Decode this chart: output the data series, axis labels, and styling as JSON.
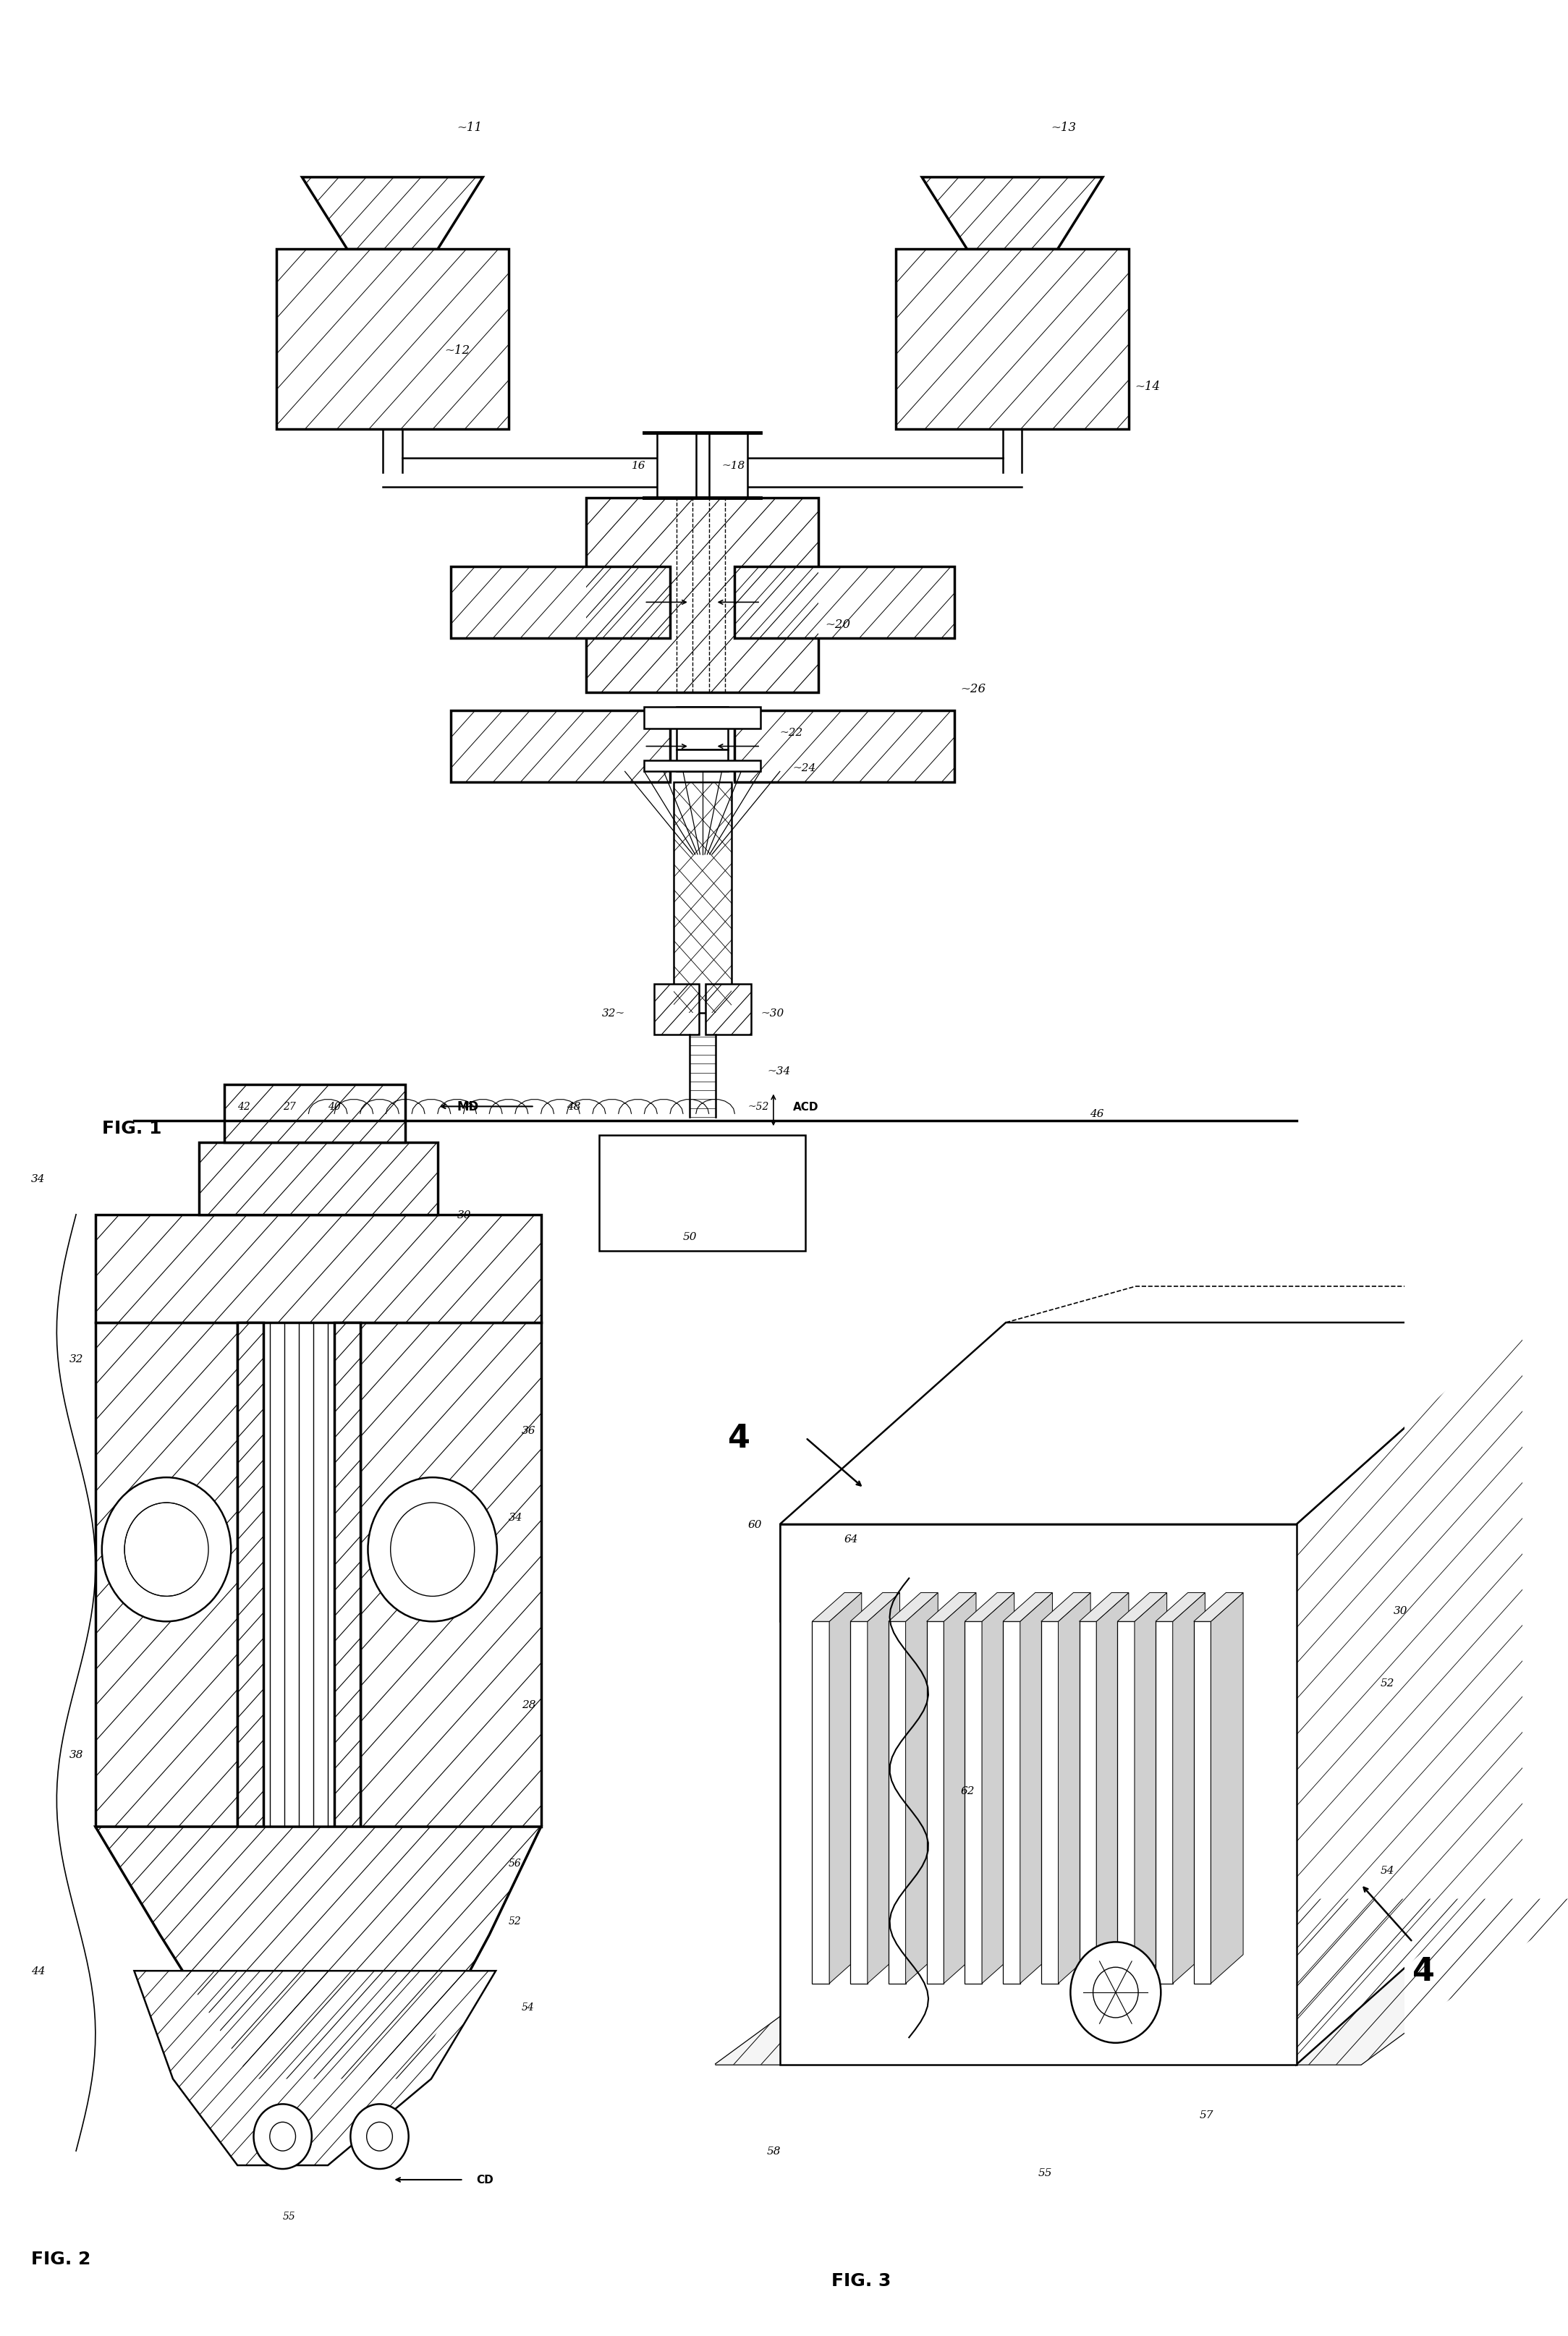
{
  "bg_color": "#ffffff",
  "fig_width": 21.67,
  "fig_height": 32.3,
  "labels": {
    "fig1": "FIG. 1",
    "fig2": "FIG. 2",
    "fig3": "FIG. 3",
    "n11": "11",
    "n12": "12",
    "n13": "13",
    "n14": "14",
    "n16": "16",
    "n18": "18",
    "n20": "20",
    "n22": "22",
    "n24": "24",
    "n26": "26",
    "n28": "28",
    "n30": "30",
    "n32": "32",
    "n34": "34",
    "n36": "36",
    "n38": "38",
    "n40": "40",
    "n42": "42",
    "n44": "44",
    "n46": "46",
    "n48": "48",
    "n50": "50",
    "n52": "52",
    "n54": "54",
    "n55": "55",
    "n56": "56",
    "n57": "57",
    "n58": "58",
    "n60": "60",
    "n62": "62",
    "n64": "64",
    "n27": "27",
    "MD": "MD",
    "ACD": "ACD",
    "CD": "CD",
    "four": "4"
  }
}
